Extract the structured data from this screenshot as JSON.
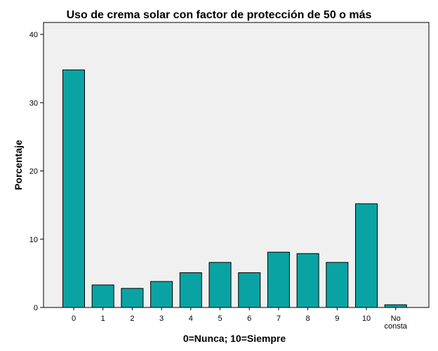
{
  "chart_data": {
    "type": "bar",
    "title": "Uso de crema solar con factor de protección de 50 o más",
    "xlabel": "0=Nunca; 10=Siempre",
    "ylabel": "Porcentaje",
    "categories": [
      "0",
      "1",
      "2",
      "3",
      "4",
      "5",
      "6",
      "7",
      "8",
      "9",
      "10",
      "No consta"
    ],
    "values": [
      34.8,
      3.3,
      2.8,
      3.8,
      5.1,
      6.6,
      5.1,
      8.1,
      7.9,
      6.6,
      15.2,
      0.4
    ],
    "yticks": [
      "0",
      "10",
      "20",
      "30",
      "40"
    ],
    "ylim": [
      0,
      40
    ],
    "grid": false,
    "legend": "none",
    "colors": {
      "bar_fill": "#0aa3a3",
      "bar_stroke": "#000000",
      "plot_background": "#f0f0f0",
      "plot_border": "#000000"
    }
  }
}
